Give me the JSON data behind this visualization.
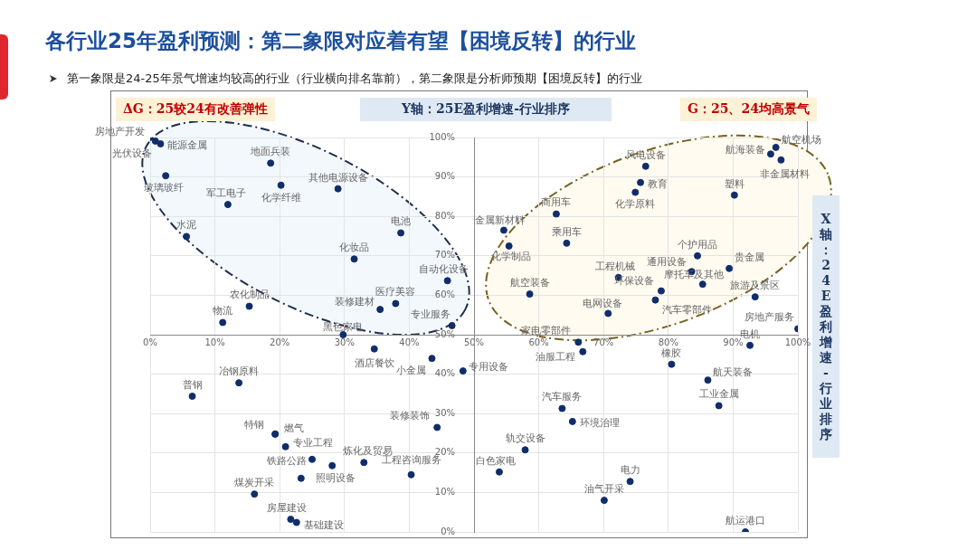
{
  "chart_data": {
    "type": "scatter",
    "title": "各行业25年盈利预测：第二象限对应着有望【困境反转】的行业",
    "subtitle": "第一象限是24-25年景气增速均较高的行业（行业横向排名靠前），第二象限是分析师预期【困境反转】的行业",
    "ylabel": "Y轴：25E盈利增速-行业排序",
    "xlabel": "X轴：24E盈利增速-行业排序",
    "xlim": [
      0,
      100
    ],
    "ylim": [
      0,
      100
    ],
    "xticks": [
      {
        "value": 0,
        "label": "0%"
      },
      {
        "value": 10,
        "label": "10%"
      },
      {
        "value": 20,
        "label": "20%"
      },
      {
        "value": 30,
        "label": "30%"
      },
      {
        "value": 40,
        "label": "40%"
      },
      {
        "value": 50,
        "label": "50%"
      },
      {
        "value": 60,
        "label": "60%"
      },
      {
        "value": 70,
        "label": "70%"
      },
      {
        "value": 80,
        "label": "80%"
      },
      {
        "value": 90,
        "label": "90%"
      },
      {
        "value": 100,
        "label": "100%"
      }
    ],
    "yticks": [
      {
        "value": 0,
        "label": "0%"
      },
      {
        "value": 10,
        "label": "10%"
      },
      {
        "value": 20,
        "label": "20%"
      },
      {
        "value": 30,
        "label": "30%"
      },
      {
        "value": 40,
        "label": "40%"
      },
      {
        "value": 50,
        "label": "50%"
      },
      {
        "value": 60,
        "label": "60%"
      },
      {
        "value": 70,
        "label": "70%"
      },
      {
        "value": 80,
        "label": "80%"
      },
      {
        "value": 90,
        "label": "90%"
      },
      {
        "value": 100,
        "label": "100%"
      }
    ],
    "grid": true,
    "legend": false,
    "marker": "circle",
    "series": [
      {
        "color": "#102d6b",
        "x": [
          0,
          0.8,
          1.6,
          2.4,
          18.6,
          20.2,
          29.0,
          12.0,
          5.6,
          38.7,
          31.5,
          45.9,
          15.3,
          37.9,
          35.5,
          11.2,
          46.6,
          29.8,
          54.6,
          55.4,
          62.7,
          64.3,
          76.5,
          75.7,
          74.9,
          95.8,
          96.6,
          97.4,
          90.2,
          84.5,
          83.6,
          85.3,
          89.4,
          93.4,
          100,
          72.3,
          78.9,
          78.0,
          58.6,
          70.7,
          66.1,
          66.8,
          92.6,
          80.5,
          86.1,
          87.8,
          63.6,
          65.2,
          57.9,
          53.9,
          74.1,
          70.1,
          91.9,
          48.3,
          34.6,
          43.5,
          13.7,
          6.5,
          44.3,
          19.3,
          19.3,
          20.9,
          25.0,
          28.1,
          33.0,
          40.3,
          23.3,
          16.1,
          21.7,
          22.6
        ],
        "values": [
          100,
          99.1,
          98.4,
          90.3,
          93.5,
          87.9,
          87.0,
          83.0,
          74.9,
          75.8,
          69.2,
          63.7,
          57.2,
          57.9,
          56.4,
          53.1,
          52.3,
          50,
          76.5,
          72.5,
          80.6,
          73.2,
          92.7,
          88.6,
          86.1,
          95.8,
          97.5,
          94.3,
          85.4,
          70.0,
          66.0,
          62.8,
          66.8,
          59.6,
          51.5,
          64.5,
          61.1,
          58.8,
          60.3,
          55.4,
          48.1,
          45.7,
          47.3,
          42.5,
          38.5,
          32.0,
          31.3,
          28.0,
          20.8,
          15.2,
          12.8,
          8.0,
          0,
          40.8,
          46.4,
          44.0,
          37.8,
          34.4,
          26.5,
          24.8,
          24.8,
          21.6,
          18.4,
          16.8,
          17.6,
          14.5,
          13.6,
          9.6,
          3.2,
          2.4
        ]
      }
    ],
    "annotations": [
      "ΔG：25较24有改善弹性",
      "G：25、24均高景气",
      {
        "text": "房地产开发",
        "x": 0,
        "y": 100
      },
      {
        "text": "光伏设备",
        "x": 0.8,
        "y": 99.1
      },
      {
        "text": "能源金属",
        "x": 1.6,
        "y": 98.4
      },
      {
        "text": "玻璃玻纤",
        "x": 2.4,
        "y": 90.3
      },
      {
        "text": "地面兵装",
        "x": 18.6,
        "y": 93.5
      },
      {
        "text": "化学纤维",
        "x": 20.2,
        "y": 87.9
      },
      {
        "text": "其他电源设备",
        "x": 29.0,
        "y": 87.0
      },
      {
        "text": "军工电子",
        "x": 12.0,
        "y": 83.0
      },
      {
        "text": "水泥",
        "x": 5.6,
        "y": 74.9
      },
      {
        "text": "电池",
        "x": 38.7,
        "y": 75.8
      },
      {
        "text": "化妆品",
        "x": 31.5,
        "y": 69.2
      },
      {
        "text": "自动化设备",
        "x": 45.9,
        "y": 63.7
      },
      {
        "text": "农化制品",
        "x": 15.3,
        "y": 57.2
      },
      {
        "text": "医疗美容",
        "x": 37.9,
        "y": 57.9
      },
      {
        "text": "装修建材",
        "x": 35.5,
        "y": 56.4
      },
      {
        "text": "物流",
        "x": 11.2,
        "y": 53.1
      },
      {
        "text": "专业服务",
        "x": 46.6,
        "y": 52.3
      },
      {
        "text": "黑色家电",
        "x": 29.8,
        "y": 50
      },
      {
        "text": "金属新材料",
        "x": 54.6,
        "y": 76.5
      },
      {
        "text": "化学制品",
        "x": 55.4,
        "y": 72.5
      },
      {
        "text": "商用车",
        "x": 62.7,
        "y": 80.6
      },
      {
        "text": "乘用车",
        "x": 64.3,
        "y": 73.2
      },
      {
        "text": "风电设备",
        "x": 76.5,
        "y": 92.7
      },
      {
        "text": "教育",
        "x": 75.7,
        "y": 88.6
      },
      {
        "text": "化学原料",
        "x": 74.9,
        "y": 86.1
      },
      {
        "text": "航海装备",
        "x": 95.8,
        "y": 95.8
      },
      {
        "text": "航空机场",
        "x": 96.6,
        "y": 97.5
      },
      {
        "text": "非金属材料",
        "x": 97.4,
        "y": 94.3
      },
      {
        "text": "塑料",
        "x": 90.2,
        "y": 85.4
      },
      {
        "text": "个护用品",
        "x": 84.5,
        "y": 70.0
      },
      {
        "text": "通用设备",
        "x": 83.6,
        "y": 66.0
      },
      {
        "text": "摩托车及其他",
        "x": 85.3,
        "y": 62.8
      },
      {
        "text": "贵金属",
        "x": 89.4,
        "y": 66.8
      },
      {
        "text": "旅游及景区",
        "x": 93.4,
        "y": 59.6
      },
      {
        "text": "房地产服务",
        "x": 100,
        "y": 51.5
      },
      {
        "text": "工程机械",
        "x": 72.3,
        "y": 64.5
      },
      {
        "text": "环保设备",
        "x": 78.9,
        "y": 61.1
      },
      {
        "text": "汽车零部件",
        "x": 78.0,
        "y": 58.8
      },
      {
        "text": "航空装备",
        "x": 58.6,
        "y": 60.3
      },
      {
        "text": "电网设备",
        "x": 70.7,
        "y": 55.4
      },
      {
        "text": "家电零部件",
        "x": 66.1,
        "y": 48.1
      },
      {
        "text": "油服工程",
        "x": 66.8,
        "y": 45.7
      },
      {
        "text": "电机",
        "x": 92.6,
        "y": 47.3
      },
      {
        "text": "橡胶",
        "x": 80.5,
        "y": 42.5
      },
      {
        "text": "航天装备",
        "x": 86.1,
        "y": 38.5
      },
      {
        "text": "工业金属",
        "x": 87.8,
        "y": 32.0
      },
      {
        "text": "汽车服务",
        "x": 63.6,
        "y": 31.3
      },
      {
        "text": "环境治理",
        "x": 65.2,
        "y": 28.0
      },
      {
        "text": "轨交设备",
        "x": 57.9,
        "y": 20.8
      },
      {
        "text": "白色家电",
        "x": 53.9,
        "y": 15.2
      },
      {
        "text": "电力",
        "x": 74.1,
        "y": 12.8
      },
      {
        "text": "油气开采",
        "x": 70.1,
        "y": 8.0
      },
      {
        "text": "航运港口",
        "x": 91.9,
        "y": 0
      },
      {
        "text": "专用设备",
        "x": 48.3,
        "y": 40.8
      },
      {
        "text": "酒店餐饮",
        "x": 34.6,
        "y": 46.4
      },
      {
        "text": "小金属",
        "x": 43.5,
        "y": 44.0
      },
      {
        "text": "冶钢原料",
        "x": 13.7,
        "y": 37.8
      },
      {
        "text": "普钢",
        "x": 6.5,
        "y": 34.4
      },
      {
        "text": "装修装饰",
        "x": 44.3,
        "y": 26.5
      },
      {
        "text": "特钢",
        "x": 19.3,
        "y": 24.8
      },
      {
        "text": "燃气",
        "x": 19.3,
        "y": 24.8
      },
      {
        "text": "专业工程",
        "x": 20.9,
        "y": 21.6
      },
      {
        "text": "铁路公路",
        "x": 25.0,
        "y": 18.4
      },
      {
        "text": "照明设备",
        "x": 28.1,
        "y": 16.8
      },
      {
        "text": "炼化及贸易",
        "x": 33.0,
        "y": 17.6
      },
      {
        "text": "工程咨询服务",
        "x": 40.3,
        "y": 14.5
      },
      {
        "text": "煤炭开采",
        "x": 16.1,
        "y": 9.6
      },
      {
        "text": "房屋建设",
        "x": 21.7,
        "y": 3.2
      },
      {
        "text": "基础建设",
        "x": 22.6,
        "y": 2.4
      }
    ]
  }
}
